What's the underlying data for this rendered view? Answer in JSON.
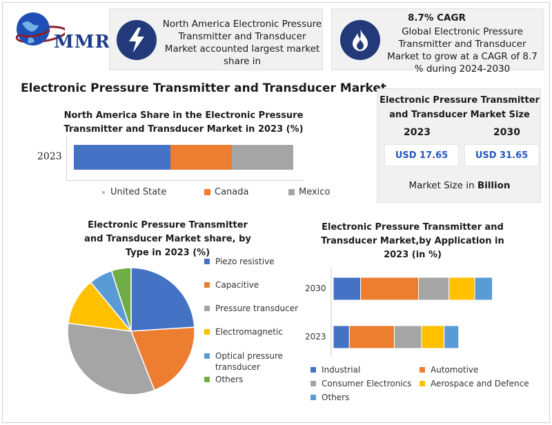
{
  "header": {
    "logo_text": "MMR",
    "card1_text": "North America Electronic Pressure Transmitter and Transducer Market accounted largest market share in",
    "card2_title": "8.7% CAGR",
    "card2_text": "Global Electronic Pressure Transmitter and Transducer Market to grow at a CAGR of 8.7 % during 2024-2030"
  },
  "main_title": "Electronic Pressure Transmitter and Transducer Market",
  "market_size": {
    "title": "Electronic Pressure Transmitter and Transducer Market Size",
    "years": [
      "2023",
      "2030"
    ],
    "values": [
      "USD 17.65",
      "USD 31.65"
    ],
    "footer_prefix": "Market Size in ",
    "footer_bold": "Billion"
  },
  "chart_data": [
    {
      "type": "bar",
      "orientation": "horizontal-stacked",
      "title": "North America Share in the Electronic Pressure Transmitter and Transducer Market in 2023 (%)",
      "categories": [
        "2023"
      ],
      "series": [
        {
          "name": "United State",
          "values": [
            44
          ],
          "color": "#4472c4"
        },
        {
          "name": "Canada",
          "values": [
            28
          ],
          "color": "#ed7d31"
        },
        {
          "name": "Mexico",
          "values": [
            28
          ],
          "color": "#a5a5a5"
        }
      ],
      "legend": "bottom"
    },
    {
      "type": "pie",
      "title": "Electronic Pressure Transmitter and Transducer Market share, by Type in 2023 (%)",
      "labels": [
        "Piezo resistive",
        "Capacitive",
        "Pressure transducer",
        "Electromagnetic",
        "Optical pressure transducer",
        "Others"
      ],
      "values": [
        24,
        20,
        33,
        12,
        6,
        5
      ],
      "colors": [
        "#4472c4",
        "#ed7d31",
        "#a5a5a5",
        "#ffc000",
        "#5b9bd5",
        "#70ad47"
      ],
      "legend": "right"
    },
    {
      "type": "bar",
      "orientation": "horizontal-stacked",
      "title": "Electronic Pressure Transmitter and Transducer Market,by Application in 2023 (in %)",
      "categories": [
        "2030",
        "2023"
      ],
      "series": [
        {
          "name": "Industrial",
          "values": [
            17,
            10
          ],
          "color": "#4472c4"
        },
        {
          "name": "Automotive",
          "values": [
            36,
            28
          ],
          "color": "#ed7d31"
        },
        {
          "name": "Consumer Electronics",
          "values": [
            19,
            17
          ],
          "color": "#a5a5a5"
        },
        {
          "name": "Aerospace and Defence",
          "values": [
            16,
            14
          ],
          "color": "#ffc000"
        },
        {
          "name": "Others",
          "values": [
            11,
            9
          ],
          "color": "#5b9bd5"
        }
      ],
      "legend": "bottom"
    }
  ]
}
